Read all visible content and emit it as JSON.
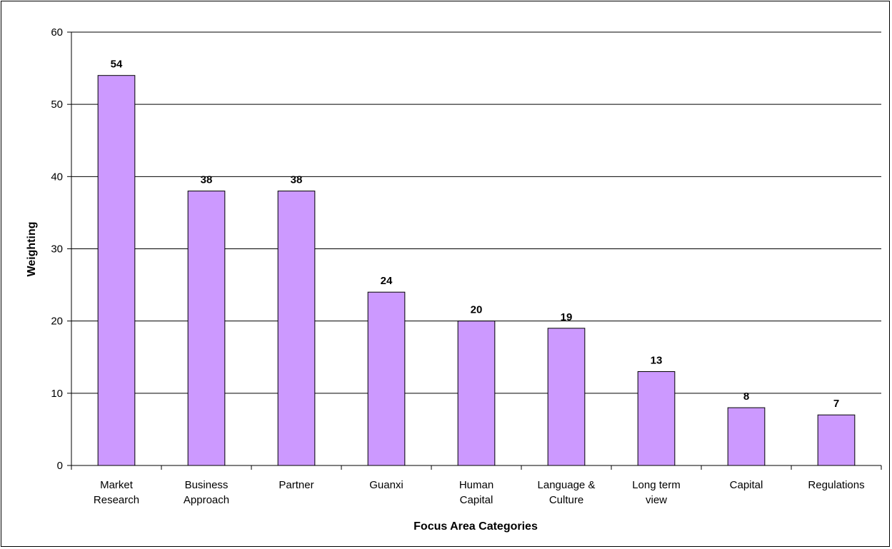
{
  "chart_data": {
    "type": "bar",
    "title": "",
    "xlabel": "Focus Area Categories",
    "ylabel": "Weighting",
    "categories": [
      [
        "Market",
        "Research"
      ],
      [
        "Business",
        "Approach"
      ],
      [
        "Partner"
      ],
      [
        "Guanxi"
      ],
      [
        "Human",
        "Capital"
      ],
      [
        "Language &",
        "Culture"
      ],
      [
        "Long term",
        "view"
      ],
      [
        "Capital"
      ],
      [
        "Regulations"
      ]
    ],
    "values": [
      54,
      38,
      38,
      24,
      20,
      19,
      13,
      8,
      7
    ],
    "ylim": [
      0,
      60
    ],
    "yticks": [
      0,
      10,
      20,
      30,
      40,
      50,
      60
    ],
    "grid": true,
    "legend": "none",
    "bar_color": "#cc99ff",
    "bar_edge_color": "#000000"
  }
}
